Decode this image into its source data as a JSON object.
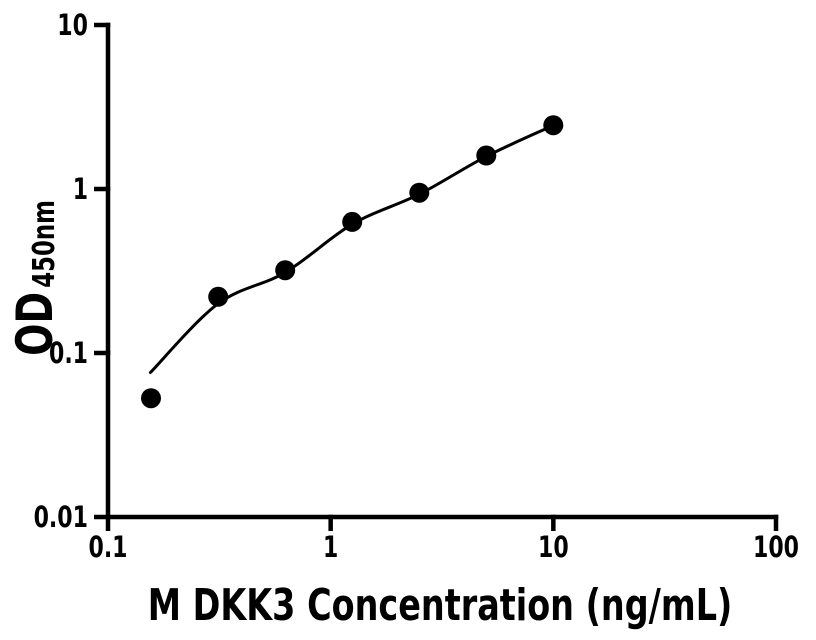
{
  "figure": {
    "background": "#ffffff",
    "foreground": "#000000"
  },
  "chart_data": {
    "type": "scatter",
    "title": "",
    "xlabel": "M DKK3 Concentration (ng/mL)",
    "ylabel_main": "OD",
    "ylabel_sub": "450nm",
    "x_scale": "log",
    "y_scale": "log",
    "xlim": [
      0.1,
      100
    ],
    "ylim": [
      0.01,
      10
    ],
    "grid": false,
    "legend": "none",
    "x_ticks": [
      {
        "value": 0.1,
        "label": "0.1"
      },
      {
        "value": 1,
        "label": "1"
      },
      {
        "value": 10,
        "label": "10"
      },
      {
        "value": 100,
        "label": "100"
      }
    ],
    "y_ticks": [
      {
        "value": 0.01,
        "label": "0.01"
      },
      {
        "value": 0.1,
        "label": "0.1"
      },
      {
        "value": 1,
        "label": "1"
      },
      {
        "value": 10,
        "label": "10"
      }
    ],
    "series": [
      {
        "name": "standard-points",
        "marker": "circle",
        "marker_color": "#000000",
        "x": [
          0.156,
          0.3125,
          0.625,
          1.25,
          2.5,
          5,
          10
        ],
        "y": [
          0.053,
          0.22,
          0.32,
          0.63,
          0.95,
          1.6,
          2.45
        ]
      }
    ],
    "fit_curve": {
      "name": "fitted-standard-curve",
      "color": "#000000",
      "x": [
        0.155,
        0.3125,
        0.625,
        1.25,
        2.5,
        5,
        10.05
      ],
      "y": [
        0.076,
        0.2,
        0.31,
        0.61,
        0.93,
        1.58,
        2.45
      ]
    }
  }
}
